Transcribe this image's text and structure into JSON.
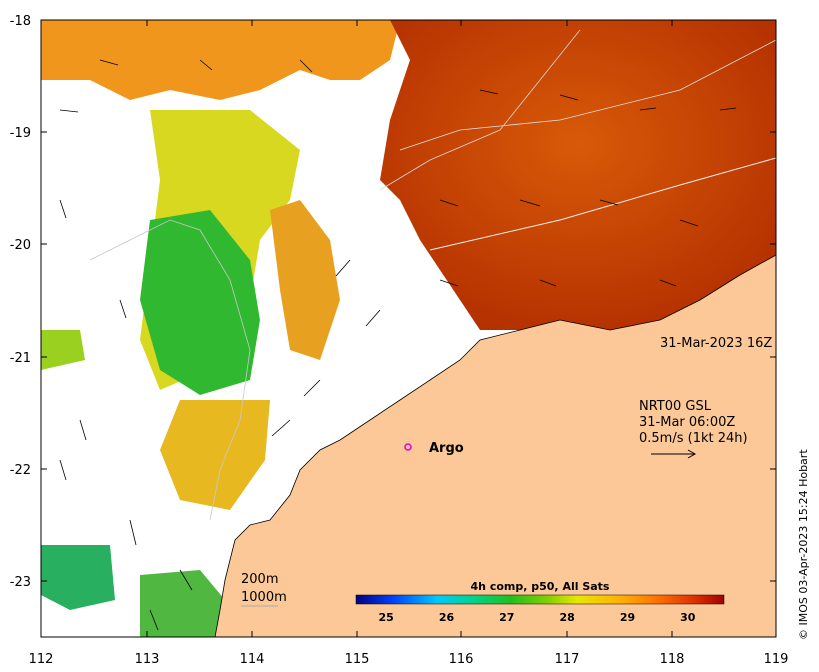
{
  "map": {
    "timestamp": "31-Mar-2023 16Z",
    "current_legend": {
      "line1": "NRT00 GSL",
      "line2": "31-Mar 06:00Z",
      "line3": "0.5m/s (1kt 24h)"
    },
    "argo_label": "Argo",
    "depth_contours": {
      "label1": "200m",
      "label2": "1000m"
    },
    "colorbar": {
      "title": "4h comp, p50, All Sats",
      "ticks": [
        "25",
        "26",
        "27",
        "28",
        "29",
        "30"
      ],
      "range": [
        24.5,
        30.6
      ],
      "colors": [
        "#00007f",
        "#0040ff",
        "#00c8ff",
        "#00d48a",
        "#20c020",
        "#80d000",
        "#e8e800",
        "#ffb000",
        "#ff7000",
        "#e03000",
        "#a00000"
      ]
    },
    "x_ticks": [
      "112",
      "113",
      "114",
      "115",
      "116",
      "117",
      "118",
      "119"
    ],
    "y_ticks": [
      "-18",
      "-19",
      "-20",
      "-21",
      "-22",
      "-23"
    ],
    "credit": "© IMOS 03-Apr-2023 15:24 Hobart",
    "colors": {
      "land": "#fcc898",
      "warm_sst": "#c23a00",
      "cool_sst": "#30b830",
      "mid_sst": "#f0a020"
    }
  }
}
